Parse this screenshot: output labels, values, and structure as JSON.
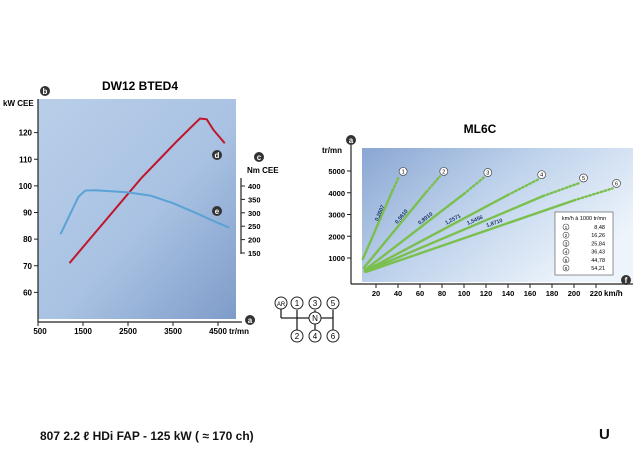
{
  "caption": "807 2.2 ℓ HDi FAP - 125 kW ( ≈ 170 ch)",
  "page_letter": "U",
  "gearbox": {
    "labels": [
      "AR",
      "1",
      "3",
      "5",
      "N",
      "2",
      "4",
      "6"
    ]
  },
  "chart_data": [
    {
      "type": "line",
      "title": "DW12 BTED4",
      "xlabel": "tr/mn",
      "ylabel": "kW CEE",
      "ylabel2": "Nm CEE",
      "badge_y": "b",
      "badge_y2": "c",
      "badge_x": "a",
      "xlim": [
        500,
        5000
      ],
      "ylim": [
        50,
        130
      ],
      "y2lim": [
        110,
        440
      ],
      "x_ticks": [
        500,
        1500,
        2500,
        3500,
        4500
      ],
      "y_ticks": [
        60,
        70,
        80,
        90,
        100,
        110,
        120
      ],
      "y2_ticks": [
        150,
        200,
        250,
        300,
        350,
        400
      ],
      "colors": {
        "plot_bg": "#c5d8ee",
        "plot_bg_dark": "#7f9cc9",
        "power": "#c0162b",
        "torque": "#5aa2d6",
        "axis": "#222222"
      },
      "series": [
        {
          "label": "d",
          "axis": "left",
          "color": "#c0162b",
          "x": [
            1200,
            1600,
            2000,
            2400,
            2800,
            3200,
            3600,
            3900,
            4100,
            4250,
            4400,
            4650
          ],
          "y": [
            71,
            79,
            87,
            95,
            103,
            110,
            117,
            122,
            125.3,
            125,
            121,
            116
          ]
        },
        {
          "label": "e",
          "axis": "right",
          "color": "#5aa2d6",
          "x": [
            1000,
            1200,
            1400,
            1550,
            1750,
            2000,
            2500,
            3000,
            3500,
            4000,
            4500,
            4750
          ],
          "y": [
            220,
            290,
            360,
            383,
            384,
            382,
            376,
            364,
            336,
            300,
            262,
            245
          ]
        }
      ]
    },
    {
      "type": "line",
      "title": "ML6C",
      "xlabel": "km/h",
      "ylabel": "tr/mn",
      "badge_y": "a",
      "badge_x": "f",
      "xlim": [
        0,
        235
      ],
      "ylim": [
        500,
        5700
      ],
      "x_ticks": [
        20,
        40,
        60,
        80,
        100,
        120,
        140,
        160,
        180,
        200,
        220
      ],
      "y_ticks": [
        1000,
        2000,
        3000,
        4000,
        5000
      ],
      "colors": {
        "plot_bg": "#c5d8ee",
        "plot_bg_dark": "#7f9cc9",
        "line": "#7bbf4e",
        "axis": "#222222"
      },
      "legend": {
        "title": "km/h à 1000 tr/mn",
        "entries": [
          {
            "gear": "1",
            "value": "8,48"
          },
          {
            "gear": "2",
            "value": "16,26"
          },
          {
            "gear": "3",
            "value": "25,84"
          },
          {
            "gear": "4",
            "value": "36,43"
          },
          {
            "gear": "5",
            "value": "44,78"
          },
          {
            "gear": "6",
            "value": "54,21"
          }
        ]
      },
      "series": [
        {
          "gear": "1",
          "ratio_label": "0,2607",
          "solid_x": [
            8,
            35
          ],
          "solid_y": [
            950,
            4100
          ],
          "dotted_x": [
            35,
            41
          ],
          "dotted_y": [
            4100,
            4750
          ]
        },
        {
          "gear": "2",
          "ratio_label": "0,5610",
          "solid_x": [
            9,
            66
          ],
          "solid_y": [
            550,
            4050
          ],
          "dotted_x": [
            66,
            78
          ],
          "dotted_y": [
            4050,
            4750
          ]
        },
        {
          "gear": "3",
          "ratio_label": "0,8910",
          "solid_x": [
            10,
            100
          ],
          "solid_y": [
            450,
            3950
          ],
          "dotted_x": [
            100,
            118
          ],
          "dotted_y": [
            3950,
            4700
          ]
        },
        {
          "gear": "4",
          "ratio_label": "1,2571",
          "solid_x": [
            10,
            140
          ],
          "solid_y": [
            400,
            3900
          ],
          "dotted_x": [
            140,
            167
          ],
          "dotted_y": [
            3900,
            4600
          ]
        },
        {
          "gear": "5",
          "ratio_label": "1,5456",
          "solid_x": [
            10,
            172
          ],
          "solid_y": [
            380,
            3850
          ],
          "dotted_x": [
            172,
            205
          ],
          "dotted_y": [
            3850,
            4450
          ]
        },
        {
          "gear": "6",
          "ratio_label": "1,8710",
          "solid_x": [
            11,
            200
          ],
          "solid_y": [
            360,
            3650
          ],
          "dotted_x": [
            200,
            235
          ],
          "dotted_y": [
            3650,
            4200
          ]
        }
      ]
    }
  ]
}
